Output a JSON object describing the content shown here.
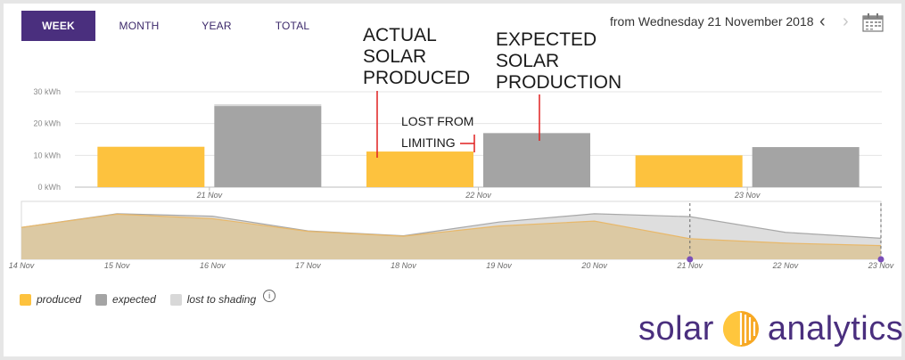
{
  "tabs": [
    {
      "label": "WEEK",
      "active": true
    },
    {
      "label": "MONTH",
      "active": false
    },
    {
      "label": "YEAR",
      "active": false
    },
    {
      "label": "TOTAL",
      "active": false
    }
  ],
  "date_range": "from Wednesday 21 November 2018",
  "nav": {
    "prev_label": "‹",
    "next_label": "›"
  },
  "icons": {
    "calendar": "calendar-icon",
    "info": "info-icon",
    "logo": "solar-sun-icon"
  },
  "colors": {
    "produced": "#fdc23e",
    "expected": "#a4a4a4",
    "lost_to_shading": "#d8d8d8",
    "brand": "#4a2f7e",
    "annotation_line": "#e02020"
  },
  "annotations": [
    {
      "lines": [
        "ACTUAL",
        "SOLAR",
        "PRODUCED"
      ]
    },
    {
      "lines": [
        "EXPECTED",
        "SOLAR",
        "PRODUCTION"
      ]
    },
    {
      "lines": [
        "LOST FROM",
        "LIMITING"
      ]
    }
  ],
  "legend": {
    "items": [
      {
        "label": "produced",
        "color_key": "produced"
      },
      {
        "label": "expected",
        "color_key": "expected"
      },
      {
        "label": "lost to shading",
        "color_key": "lost_to_shading"
      }
    ],
    "info_symbol": "i"
  },
  "logo": {
    "left_text": "solar",
    "right_text": "analytics"
  },
  "chart_data": [
    {
      "type": "bar",
      "categories": [
        "21 Nov",
        "22 Nov",
        "23 Nov"
      ],
      "series": [
        {
          "name": "produced",
          "values": [
            12.7,
            11.2,
            10.0
          ]
        },
        {
          "name": "expected",
          "values": [
            25.5,
            17.0,
            12.6
          ]
        },
        {
          "name": "lost to shading",
          "values": [
            0.6,
            0,
            0
          ]
        }
      ],
      "y_ticks": [
        "0 kWh",
        "10 kWh",
        "20 kWh",
        "30 kWh"
      ],
      "ylim": [
        0,
        30
      ],
      "grid": true
    },
    {
      "type": "area",
      "x": [
        "14 Nov",
        "15 Nov",
        "16 Nov",
        "17 Nov",
        "18 Nov",
        "19 Nov",
        "20 Nov",
        "21 Nov",
        "22 Nov",
        "23 Nov"
      ],
      "series": [
        {
          "name": "produced",
          "values": [
            0.65,
            0.92,
            0.83,
            0.57,
            0.47,
            0.68,
            0.78,
            0.42,
            0.33,
            0.28
          ]
        },
        {
          "name": "expected",
          "values": [
            0.65,
            0.93,
            0.88,
            0.58,
            0.48,
            0.76,
            0.93,
            0.87,
            0.55,
            0.43
          ]
        }
      ],
      "selection": [
        "21 Nov",
        "23 Nov"
      ]
    }
  ]
}
